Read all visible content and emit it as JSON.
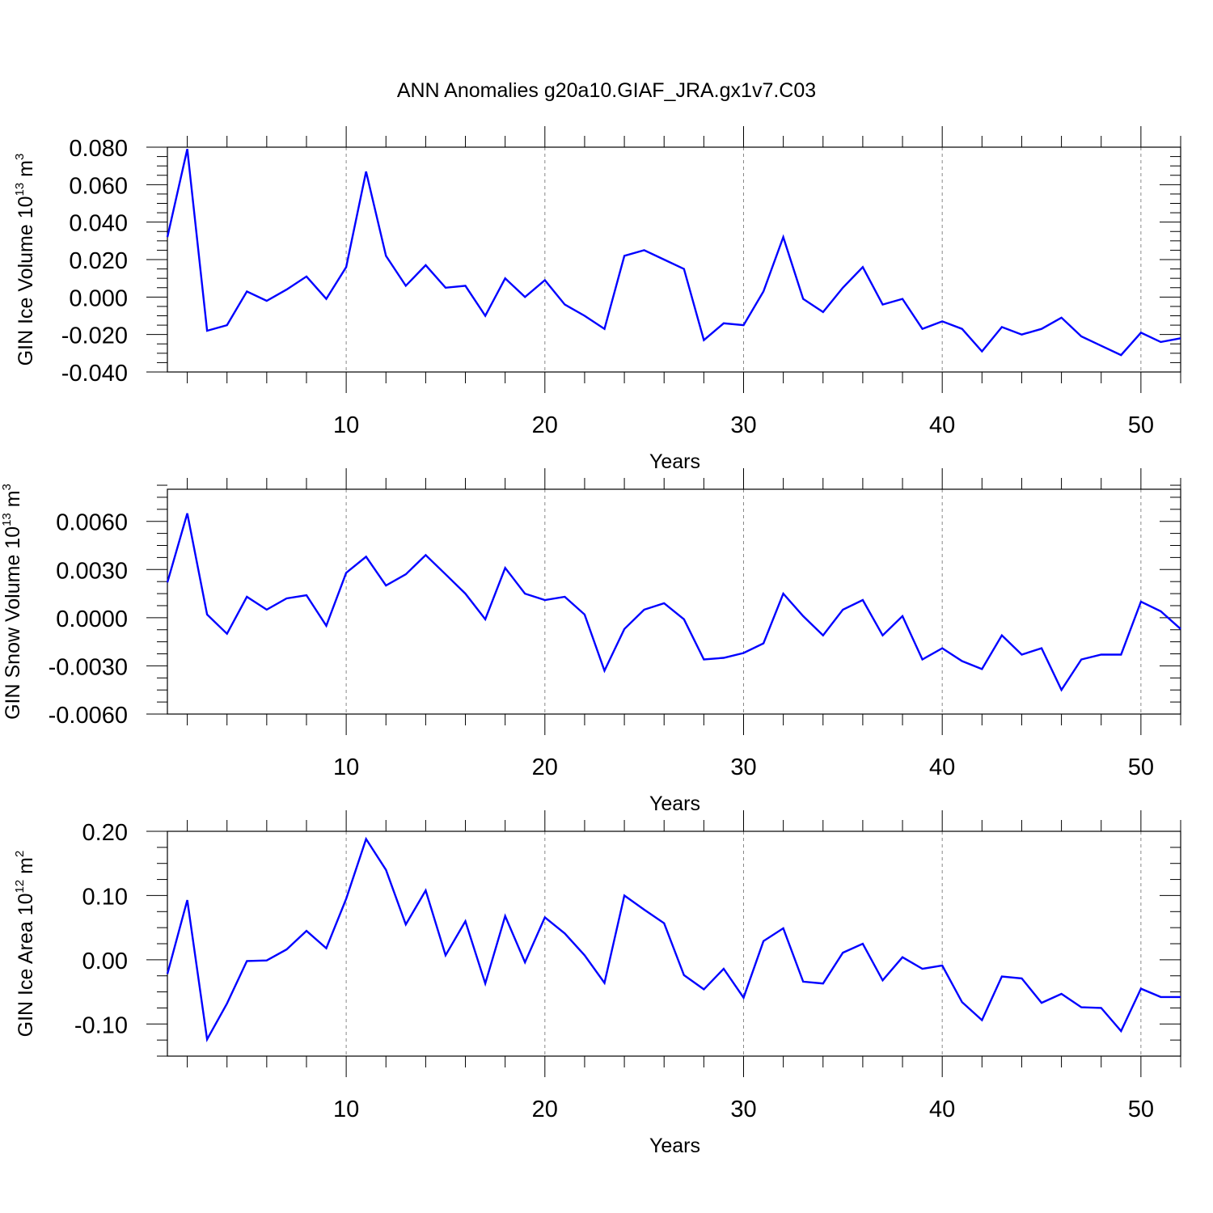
{
  "title": "ANN Anomalies g20a10.GIAF_JRA.gx1v7.C03",
  "chart_data": [
    {
      "type": "line",
      "xlabel": "Years",
      "ylabel": {
        "text": "GIN Ice Volume 10",
        "exponent": "13",
        "unit": " m",
        "unit_exponent": "3"
      },
      "xlim": [
        1,
        52
      ],
      "ylim": [
        -0.04,
        0.08
      ],
      "x_ticks": [
        10,
        20,
        30,
        40,
        50
      ],
      "y_ticks": [
        "-0.040",
        "-0.020",
        "0.000",
        "0.020",
        "0.040",
        "0.060",
        "0.080"
      ],
      "grid": "vertical dashed at major x ticks",
      "series": [
        {
          "color": "#0000ff",
          "x": [
            1,
            2,
            3,
            4,
            5,
            6,
            7,
            8,
            9,
            10,
            11,
            12,
            13,
            14,
            15,
            16,
            17,
            18,
            19,
            20,
            21,
            22,
            23,
            24,
            25,
            26,
            27,
            28,
            29,
            30,
            31,
            32,
            33,
            34,
            35,
            36,
            37,
            38,
            39,
            40,
            41,
            42,
            43,
            44,
            45,
            46,
            47,
            48,
            49,
            50,
            51,
            52
          ],
          "values": [
            0.032,
            0.079,
            -0.018,
            -0.015,
            0.003,
            -0.002,
            0.004,
            0.011,
            -0.001,
            0.016,
            0.067,
            0.022,
            0.006,
            0.017,
            0.005,
            0.006,
            -0.01,
            0.01,
            0.0,
            0.009,
            -0.004,
            -0.01,
            -0.017,
            0.022,
            0.025,
            0.02,
            0.015,
            -0.023,
            -0.014,
            -0.015,
            0.003,
            0.032,
            -0.001,
            -0.008,
            0.005,
            0.016,
            -0.004,
            -0.001,
            -0.017,
            -0.013,
            -0.017,
            -0.029,
            -0.016,
            -0.02,
            -0.017,
            -0.011,
            -0.021,
            -0.026,
            -0.031,
            -0.019,
            -0.024,
            -0.022
          ]
        }
      ]
    },
    {
      "type": "line",
      "xlabel": "Years",
      "ylabel": {
        "text": "GIN Snow Volume 10",
        "exponent": "13",
        "unit": " m",
        "unit_exponent": "3"
      },
      "xlim": [
        1,
        52
      ],
      "ylim": [
        -0.006,
        0.008
      ],
      "x_ticks": [
        10,
        20,
        30,
        40,
        50
      ],
      "y_ticks": [
        "-0.0060",
        "-0.0030",
        "0.0000",
        "0.0030",
        "0.0060"
      ],
      "grid": "vertical dashed at major x ticks",
      "series": [
        {
          "color": "#0000ff",
          "x": [
            1,
            2,
            3,
            4,
            5,
            6,
            7,
            8,
            9,
            10,
            11,
            12,
            13,
            14,
            15,
            16,
            17,
            18,
            19,
            20,
            21,
            22,
            23,
            24,
            25,
            26,
            27,
            28,
            29,
            30,
            31,
            32,
            33,
            34,
            35,
            36,
            37,
            38,
            39,
            40,
            41,
            42,
            43,
            44,
            45,
            46,
            47,
            48,
            49,
            50,
            51,
            52
          ],
          "values": [
            0.0022,
            0.0065,
            0.0002,
            -0.001,
            0.0013,
            0.0005,
            0.0012,
            0.0014,
            -0.0005,
            0.0028,
            0.0038,
            0.002,
            0.0027,
            0.0039,
            0.0027,
            0.0015,
            -0.0001,
            0.0031,
            0.0015,
            0.0011,
            0.0013,
            0.0002,
            -0.0033,
            -0.0007,
            0.0005,
            0.0009,
            -0.0001,
            -0.0026,
            -0.0025,
            -0.0022,
            -0.0016,
            0.0015,
            0.0001,
            -0.0011,
            0.0005,
            0.0011,
            -0.0011,
            0.0001,
            -0.0026,
            -0.0019,
            -0.0027,
            -0.0032,
            -0.0011,
            -0.0023,
            -0.0019,
            -0.0045,
            -0.0026,
            -0.0023,
            -0.0023,
            0.001,
            0.0004,
            -0.0007
          ]
        }
      ]
    },
    {
      "type": "line",
      "xlabel": "Years",
      "ylabel": {
        "text": "GIN Ice Area 10",
        "exponent": "12",
        "unit": " m",
        "unit_exponent": "2"
      },
      "xlim": [
        1,
        52
      ],
      "ylim": [
        -0.15,
        0.2
      ],
      "x_ticks": [
        10,
        20,
        30,
        40,
        50
      ],
      "y_ticks": [
        "-0.10",
        "0.00",
        "0.10",
        "0.20"
      ],
      "grid": "vertical dashed at major x ticks",
      "series": [
        {
          "color": "#0000ff",
          "x": [
            1,
            2,
            3,
            4,
            5,
            6,
            7,
            8,
            9,
            10,
            11,
            12,
            13,
            14,
            15,
            16,
            17,
            18,
            19,
            20,
            21,
            22,
            23,
            24,
            25,
            26,
            27,
            28,
            29,
            30,
            31,
            32,
            33,
            34,
            35,
            36,
            37,
            38,
            39,
            40,
            41,
            42,
            43,
            44,
            45,
            46,
            47,
            48,
            49,
            50,
            51,
            52
          ],
          "values": [
            -0.022,
            0.093,
            -0.124,
            -0.068,
            -0.002,
            -0.001,
            0.016,
            0.045,
            0.018,
            0.095,
            0.188,
            0.14,
            0.055,
            0.108,
            0.007,
            0.06,
            -0.037,
            0.068,
            -0.004,
            0.066,
            0.041,
            0.007,
            -0.036,
            0.1,
            0.078,
            0.057,
            -0.024,
            -0.046,
            -0.014,
            -0.059,
            0.029,
            0.049,
            -0.034,
            -0.037,
            0.011,
            0.025,
            -0.032,
            0.004,
            -0.014,
            -0.009,
            -0.066,
            -0.094,
            -0.026,
            -0.029,
            -0.067,
            -0.053,
            -0.074,
            -0.075,
            -0.111,
            -0.045,
            -0.058,
            -0.058
          ]
        }
      ]
    }
  ]
}
